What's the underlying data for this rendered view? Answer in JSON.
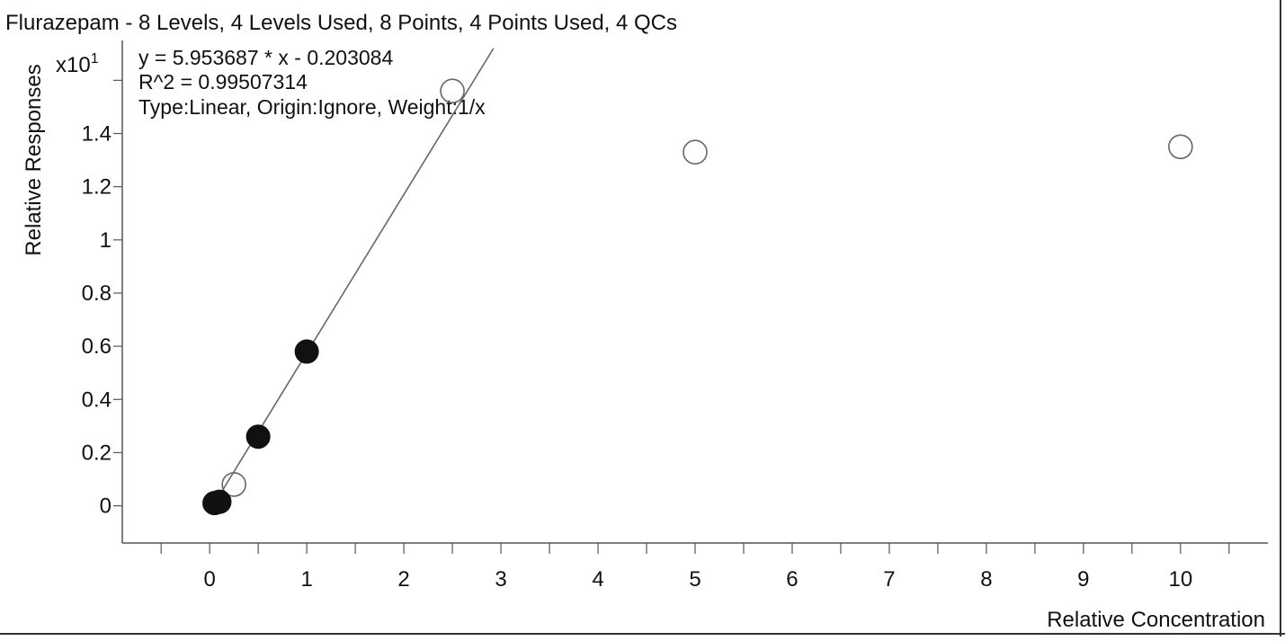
{
  "chart_data": {
    "type": "scatter",
    "title": "Flurazepam - 8 Levels, 4 Levels Used, 8 Points, 4 Points Used, 4 QCs",
    "xlabel": "Relative Concentration",
    "ylabel": "Relative Responses",
    "y_multiplier": "x10",
    "y_multiplier_exp": "1",
    "equation": "y = 5.953687 * x  - 0.203084",
    "r_squared": "R^2 = 0.99507314",
    "fit_info": "Type:Linear, Origin:Ignore, Weight:1/x",
    "xlim": [
      -0.9,
      10.9
    ],
    "ylim": [
      -0.14,
      1.75
    ],
    "x_ticks": [
      0,
      1,
      2,
      3,
      4,
      5,
      6,
      7,
      8,
      9,
      10
    ],
    "x_tick_labels": [
      "0",
      "1",
      "2",
      "3",
      "4",
      "5",
      "6",
      "7",
      "8",
      "9",
      "10"
    ],
    "y_ticks": [
      0,
      0.2,
      0.4,
      0.6,
      0.8,
      1,
      1.2,
      1.4
    ],
    "y_tick_labels": [
      "0",
      "0.2",
      "0.4",
      "0.6",
      "0.8",
      "1",
      "1.2",
      "1.4"
    ],
    "fit_line": {
      "slope": 0.5953687,
      "intercept": -0.0203084
    },
    "series": [
      {
        "marker": "filled",
        "color": "#111111",
        "points": [
          {
            "x": 0.05,
            "y": 0.01
          },
          {
            "x": 0.1,
            "y": 0.015
          },
          {
            "x": 0.5,
            "y": 0.26
          },
          {
            "x": 1.0,
            "y": 0.58
          }
        ]
      },
      {
        "marker": "open",
        "color": "#111111",
        "points": [
          {
            "x": 0.25,
            "y": 0.08
          },
          {
            "x": 2.5,
            "y": 1.56
          },
          {
            "x": 5.0,
            "y": 1.33
          },
          {
            "x": 10.0,
            "y": 1.35
          }
        ]
      }
    ]
  }
}
